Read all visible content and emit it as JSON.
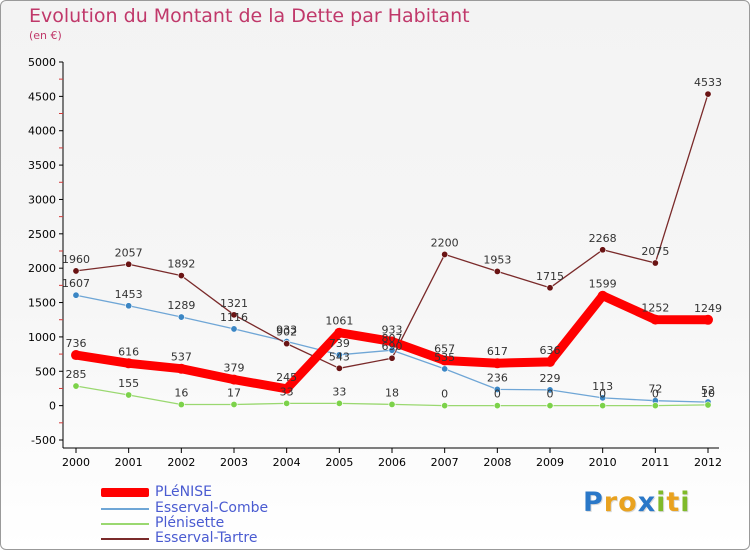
{
  "title": "Evolution du Montant de la Dette par Habitant",
  "subtitle": "(en €)",
  "logo": {
    "text": "Proxiti",
    "letters": [
      {
        "ch": "P",
        "color": "#2a78c8"
      },
      {
        "ch": "r",
        "color": "#e9a21f"
      },
      {
        "ch": "o",
        "color": "#e9a21f"
      },
      {
        "ch": "x",
        "color": "#2a78c8"
      },
      {
        "ch": "i",
        "color": "#7fba2a"
      },
      {
        "ch": "t",
        "color": "#e9a21f"
      },
      {
        "ch": "i",
        "color": "#7fba2a"
      }
    ]
  },
  "chart_data": {
    "type": "line",
    "title": "Evolution du Montant de la Dette par Habitant",
    "subtitle": "(en €)",
    "ylim": [
      -500,
      5000
    ],
    "yticks": [
      -500,
      0,
      500,
      1000,
      1500,
      2000,
      2500,
      3000,
      3500,
      4000,
      4500,
      5000
    ],
    "x": [
      "2000",
      "2001",
      "2002",
      "2003",
      "2004",
      "2005",
      "2006",
      "2007",
      "2008",
      "2009",
      "2010",
      "2011",
      "2012"
    ],
    "grid": false,
    "legend_position": "bottom-left",
    "series": [
      {
        "name": "PLéNISE",
        "color": "#ff0000",
        "marker_color": "#ff0000",
        "values": [
          736,
          616,
          537,
          379,
          245,
          1061,
          933,
          657,
          617,
          636,
          1599,
          1252,
          1249
        ],
        "labels": [
          "736",
          "616",
          "537",
          "379",
          "245",
          "1061",
          "933",
          "657",
          "617",
          "636",
          "1599",
          "1252",
          "1249"
        ]
      },
      {
        "name": "Esserval-Combe",
        "color": "#6fa6d6",
        "marker_color": "#3b86c4",
        "values": [
          1607,
          1453,
          1289,
          1116,
          933,
          739,
          807,
          535,
          236,
          229,
          113,
          72,
          52
        ],
        "labels": [
          "1607",
          "1453",
          "1289",
          "1116",
          "933",
          "739",
          "807",
          "535",
          "236",
          "229",
          "113",
          "72",
          "52"
        ]
      },
      {
        "name": "Plénisette",
        "color": "#9ad870",
        "marker_color": "#7cd24a",
        "values": [
          285,
          155,
          16,
          17,
          33,
          33,
          18,
          0,
          0,
          0,
          0,
          0,
          10
        ],
        "labels": [
          "285",
          "155",
          "16",
          "17",
          "33",
          "33",
          "18",
          "0",
          "0",
          "0",
          "0",
          "0",
          "10"
        ]
      },
      {
        "name": "Esserval-Tartre",
        "color": "#7a2a2a",
        "marker_color": "#6a1414",
        "values": [
          1960,
          2057,
          1892,
          1321,
          902,
          543,
          690,
          2200,
          1953,
          1715,
          2268,
          2075,
          4533
        ],
        "labels": [
          "1960",
          "2057",
          "1892",
          "1321",
          "902",
          "543",
          "690",
          "2200",
          "1953",
          "1715",
          "2268",
          "2075",
          "4533"
        ]
      }
    ]
  }
}
